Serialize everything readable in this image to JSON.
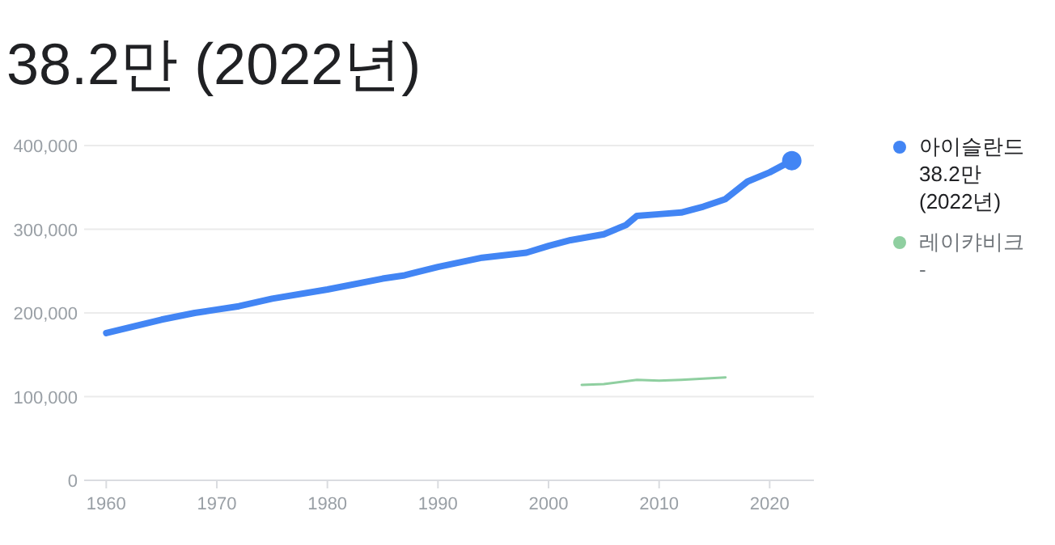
{
  "chart_data": {
    "type": "line",
    "title": "38.2만 (2022년)",
    "series": [
      {
        "name": "아이슬란드",
        "color": "#4285f4",
        "x": [
          1960,
          1965,
          1968,
          1970,
          1972,
          1975,
          1980,
          1985,
          1987,
          1990,
          1994,
          1998,
          2000,
          2002,
          2005,
          2007,
          2008,
          2010,
          2012,
          2014,
          2016,
          2018,
          2020,
          2022
        ],
        "values": [
          176000,
          192000,
          200000,
          204000,
          208000,
          217000,
          228000,
          241000,
          245000,
          255000,
          266000,
          272000,
          280000,
          287000,
          294000,
          305000,
          316000,
          318000,
          320000,
          327000,
          336000,
          357000,
          368000,
          382000
        ]
      },
      {
        "name": "레이캬비크",
        "color": "#8fcfa0",
        "x": [
          2003,
          2005,
          2008,
          2010,
          2012,
          2016
        ],
        "values": [
          114000,
          115000,
          120000,
          119000,
          120000,
          123000
        ]
      }
    ],
    "annotations": [
      "38.2만 (2022년)",
      "-"
    ],
    "xlim": [
      1958,
      2024
    ],
    "xticks": [
      1960,
      1970,
      1980,
      1990,
      2000,
      2010,
      2020
    ],
    "ylim": [
      0,
      400000
    ],
    "yticks": [
      {
        "value": 0,
        "label": "0"
      },
      {
        "value": 100000,
        "label": "100,000"
      },
      {
        "value": 200000,
        "label": "200,000"
      },
      {
        "value": 300000,
        "label": "300,000"
      },
      {
        "value": 400000,
        "label": "400,000"
      }
    ],
    "grid": "y",
    "legend": "right"
  }
}
